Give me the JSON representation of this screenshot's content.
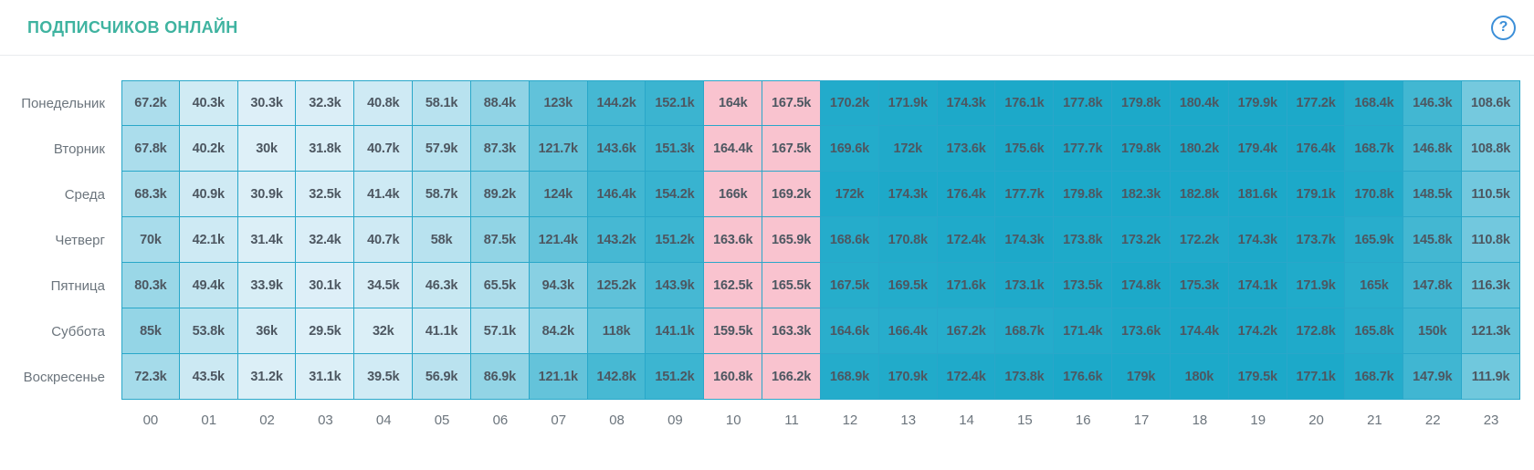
{
  "header": {
    "title": "ПОДПИСЧИКОВ ОНЛАЙН",
    "help_glyph": "?"
  },
  "colors": {
    "title": "#3fb3a0",
    "help_icon": "#3c8fd8",
    "header_divider": "#e9ebee",
    "cell_border": "#29a7c9",
    "scale_low": "#dff0f8",
    "scale_high": "#1ca9c9",
    "highlight_cell": "#f9c3cf",
    "value_text": "#4d5761",
    "label_text": "#6c757d",
    "background": "#ffffff"
  },
  "chart_data": {
    "type": "heatmap",
    "title": "ПОДПИСЧИКОВ ОНЛАЙН",
    "value_unit": "k",
    "value_suffix": "k",
    "x": [
      "00",
      "01",
      "02",
      "03",
      "04",
      "05",
      "06",
      "07",
      "08",
      "09",
      "10",
      "11",
      "12",
      "13",
      "14",
      "15",
      "16",
      "17",
      "18",
      "19",
      "20",
      "21",
      "22",
      "23"
    ],
    "highlight_hours": [
      "10",
      "11"
    ],
    "scale": {
      "min_k": 29,
      "max_k": 175
    },
    "series": [
      {
        "name": "Понедельник",
        "values": [
          67.2,
          40.3,
          30.3,
          32.3,
          40.8,
          58.1,
          88.4,
          123,
          144.2,
          152.1,
          164,
          167.5,
          170.2,
          171.9,
          174.3,
          176.1,
          177.8,
          179.8,
          180.4,
          179.9,
          177.2,
          168.4,
          146.3,
          108.6
        ]
      },
      {
        "name": "Вторник",
        "values": [
          67.8,
          40.2,
          30,
          31.8,
          40.7,
          57.9,
          87.3,
          121.7,
          143.6,
          151.3,
          164.4,
          167.5,
          169.6,
          172,
          173.6,
          175.6,
          177.7,
          179.8,
          180.2,
          179.4,
          176.4,
          168.7,
          146.8,
          108.8
        ]
      },
      {
        "name": "Среда",
        "values": [
          68.3,
          40.9,
          30.9,
          32.5,
          41.4,
          58.7,
          89.2,
          124,
          146.4,
          154.2,
          166,
          169.2,
          172,
          174.3,
          176.4,
          177.7,
          179.8,
          182.3,
          182.8,
          181.6,
          179.1,
          170.8,
          148.5,
          110.5
        ]
      },
      {
        "name": "Четверг",
        "values": [
          70,
          42.1,
          31.4,
          32.4,
          40.7,
          58,
          87.5,
          121.4,
          143.2,
          151.2,
          163.6,
          165.9,
          168.6,
          170.8,
          172.4,
          174.3,
          173.8,
          173.2,
          172.2,
          174.3,
          173.7,
          165.9,
          145.8,
          110.8
        ]
      },
      {
        "name": "Пятница",
        "values": [
          80.3,
          49.4,
          33.9,
          30.1,
          34.5,
          46.3,
          65.5,
          94.3,
          125.2,
          143.9,
          162.5,
          165.5,
          167.5,
          169.5,
          171.6,
          173.1,
          173.5,
          174.8,
          175.3,
          174.1,
          171.9,
          165,
          147.8,
          116.3
        ]
      },
      {
        "name": "Суббота",
        "values": [
          85,
          53.8,
          36,
          29.5,
          32,
          41.1,
          57.1,
          84.2,
          118,
          141.1,
          159.5,
          163.3,
          164.6,
          166.4,
          167.2,
          168.7,
          171.4,
          173.6,
          174.4,
          174.2,
          172.8,
          165.8,
          150,
          121.3
        ]
      },
      {
        "name": "Воскресенье",
        "values": [
          72.3,
          43.5,
          31.2,
          31.1,
          39.5,
          56.9,
          86.9,
          121.1,
          142.8,
          151.2,
          160.8,
          166.2,
          168.9,
          170.9,
          172.4,
          173.8,
          176.6,
          179,
          180,
          179.5,
          177.1,
          168.7,
          147.9,
          111.9
        ]
      }
    ]
  }
}
